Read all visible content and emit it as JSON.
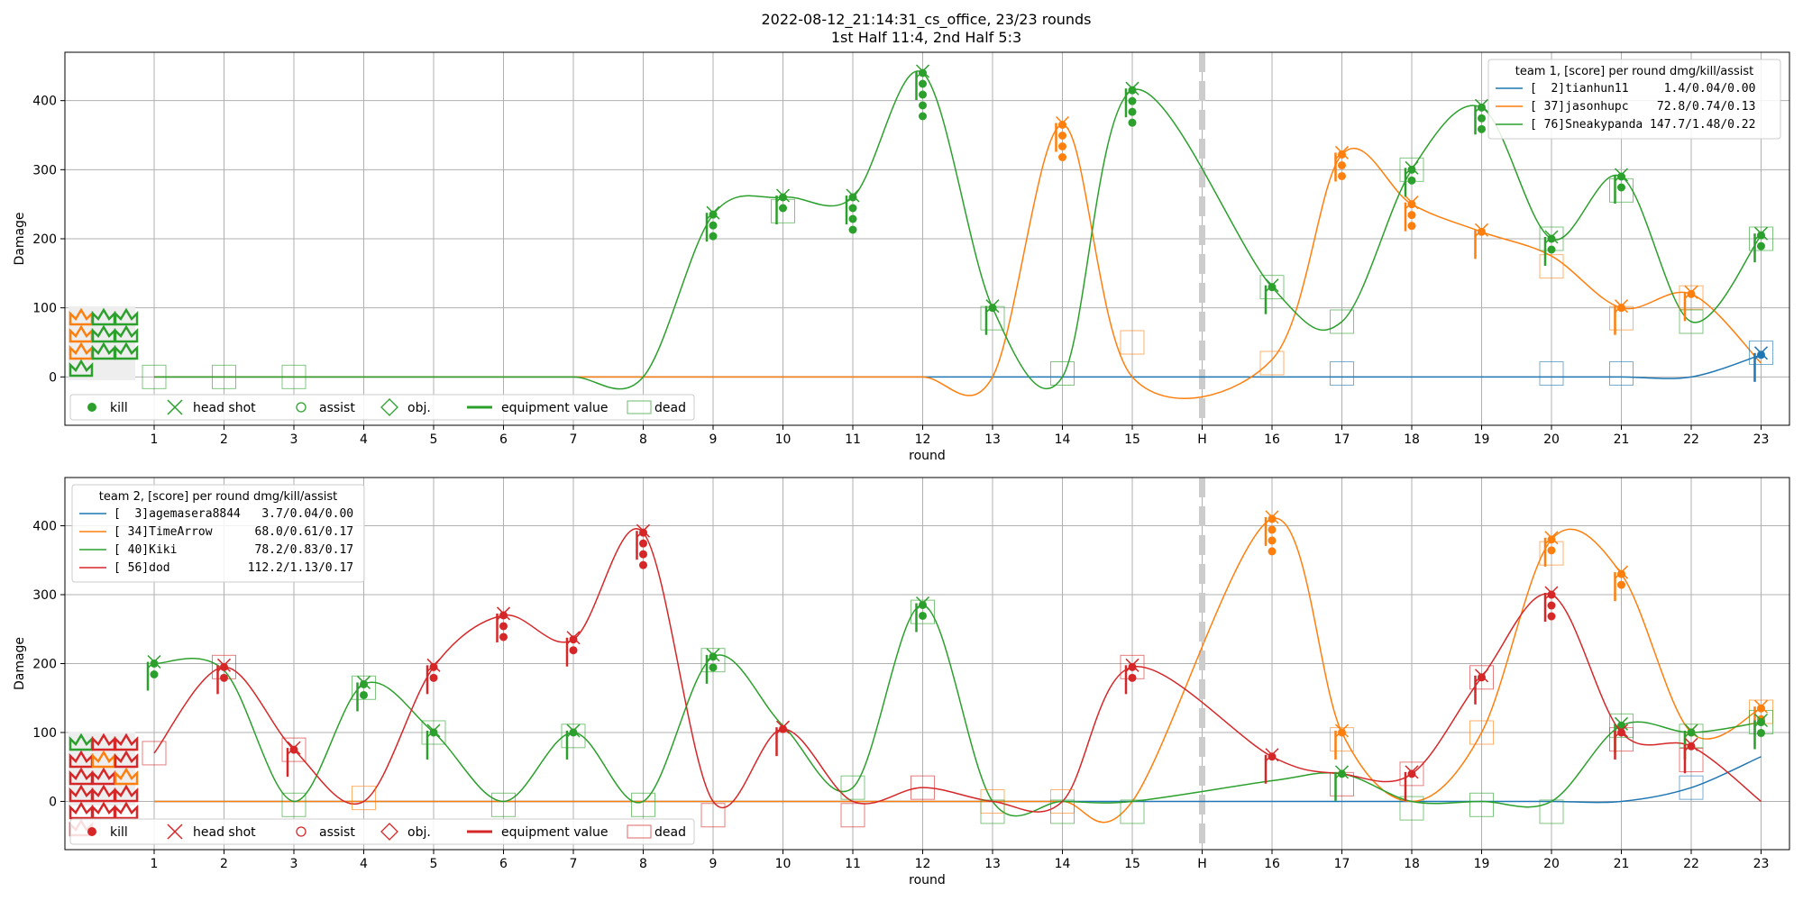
{
  "title_line1": "2022-08-12_21:14:31_cs_office, 23/23 rounds",
  "title_line2": "1st Half 11:4, 2nd Half 5:3",
  "colors": {
    "blue": "#1f77b4",
    "orange": "#ff7f0e",
    "green": "#2ca02c",
    "red": "#d62728"
  },
  "marker_legend": [
    "kill",
    "head shot",
    "assist",
    "obj.",
    "equipment value",
    "dead"
  ],
  "chart_data": [
    {
      "type": "line",
      "xlabel": "round",
      "ylabel": "Damage",
      "x_ticks": [
        "1",
        "2",
        "3",
        "4",
        "5",
        "6",
        "7",
        "8",
        "9",
        "10",
        "11",
        "12",
        "13",
        "14",
        "15",
        "H",
        "16",
        "17",
        "18",
        "19",
        "20",
        "21",
        "22",
        "23"
      ],
      "yticks": [
        0,
        100,
        200,
        300,
        400
      ],
      "ylim": [
        -70,
        470
      ],
      "grid": true,
      "halftime_after_round": 15,
      "legend_title": "team 1, [score] per round dmg/kill/assist",
      "legend_position": "top-right",
      "marker_legend_color": "green",
      "series": [
        {
          "name": "[  2]tianhun11     1.4/0.04/0.00",
          "color": "blue",
          "values": [
            0,
            0,
            0,
            0,
            0,
            0,
            0,
            0,
            0,
            0,
            0,
            0,
            0,
            0,
            0,
            0,
            0,
            0,
            0,
            0,
            0,
            0,
            32
          ]
        },
        {
          "name": "[ 37]jasonhupc    72.8/0.74/0.13",
          "color": "orange",
          "values": [
            0,
            0,
            0,
            0,
            0,
            0,
            0,
            0,
            0,
            0,
            0,
            0,
            0,
            365,
            0,
            25,
            322,
            250,
            210,
            175,
            100,
            120,
            20
          ]
        },
        {
          "name": "[ 76]Sneakypanda 147.7/1.48/0.22",
          "color": "green",
          "values": [
            0,
            0,
            0,
            0,
            0,
            0,
            0,
            0,
            235,
            260,
            260,
            440,
            100,
            0,
            415,
            130,
            80,
            300,
            390,
            200,
            290,
            80,
            205
          ]
        }
      ],
      "kills": [
        {
          "round": 9,
          "team_color": "green",
          "count": 3
        },
        {
          "round": 10,
          "team_color": "green",
          "count": 2
        },
        {
          "round": 11,
          "team_color": "green",
          "count": 4
        },
        {
          "round": 12,
          "team_color": "green",
          "count": 5
        },
        {
          "round": 13,
          "team_color": "green",
          "count": 1
        },
        {
          "round": 14,
          "team_color": "orange",
          "count": 4
        },
        {
          "round": 15,
          "team_color": "green",
          "count": 4
        },
        {
          "round": 16,
          "team_color": "green",
          "count": 1
        },
        {
          "round": 17,
          "team_color": "orange",
          "count": 3
        },
        {
          "round": 18,
          "team_color": "orange",
          "count": 3
        },
        {
          "round": 18,
          "team_color": "green",
          "count": 2
        },
        {
          "round": 19,
          "team_color": "green",
          "count": 3
        },
        {
          "round": 19,
          "team_color": "orange",
          "count": 1
        },
        {
          "round": 20,
          "team_color": "green",
          "count": 2
        },
        {
          "round": 21,
          "team_color": "green",
          "count": 2
        },
        {
          "round": 21,
          "team_color": "orange",
          "count": 1
        },
        {
          "round": 22,
          "team_color": "orange",
          "count": 1
        },
        {
          "round": 23,
          "team_color": "green",
          "count": 2
        },
        {
          "round": 23,
          "team_color": "blue",
          "count": 1
        }
      ],
      "deaths": [
        {
          "round": 1,
          "color": "green",
          "y": 0
        },
        {
          "round": 2,
          "color": "green",
          "y": 0
        },
        {
          "round": 3,
          "color": "green",
          "y": 0
        },
        {
          "round": 10,
          "color": "green",
          "y": 240
        },
        {
          "round": 13,
          "color": "green",
          "y": 85
        },
        {
          "round": 14,
          "color": "green",
          "y": 5
        },
        {
          "round": 15,
          "color": "orange",
          "y": 50
        },
        {
          "round": 16,
          "color": "orange",
          "y": 20
        },
        {
          "round": 16,
          "color": "green",
          "y": 130
        },
        {
          "round": 17,
          "color": "blue",
          "y": 5
        },
        {
          "round": 17,
          "color": "green",
          "y": 80
        },
        {
          "round": 18,
          "color": "green",
          "y": 300
        },
        {
          "round": 20,
          "color": "blue",
          "y": 5
        },
        {
          "round": 20,
          "color": "orange",
          "y": 160
        },
        {
          "round": 20,
          "color": "green",
          "y": 200
        },
        {
          "round": 21,
          "color": "blue",
          "y": 5
        },
        {
          "round": 21,
          "color": "orange",
          "y": 85
        },
        {
          "round": 21,
          "color": "green",
          "y": 270
        },
        {
          "round": 22,
          "color": "orange",
          "y": 115
        },
        {
          "round": 22,
          "color": "green",
          "y": 80
        },
        {
          "round": 23,
          "color": "blue",
          "y": 35
        },
        {
          "round": 23,
          "color": "green",
          "y": 200
        }
      ],
      "crowns": [
        {
          "color": "orange",
          "count": 1
        },
        {
          "color": "green",
          "count": 2
        },
        {
          "color": "orange",
          "count": 1
        },
        {
          "color": "green",
          "count": 2
        },
        {
          "color": "orange",
          "count": 1
        },
        {
          "color": "green",
          "count": 1
        },
        {
          "color": "green",
          "count": 2
        }
      ]
    },
    {
      "type": "line",
      "xlabel": "round",
      "ylabel": "Damage",
      "x_ticks": [
        "1",
        "2",
        "3",
        "4",
        "5",
        "6",
        "7",
        "8",
        "9",
        "10",
        "11",
        "12",
        "13",
        "14",
        "15",
        "H",
        "16",
        "17",
        "18",
        "19",
        "20",
        "21",
        "22",
        "23"
      ],
      "yticks": [
        0,
        100,
        200,
        300,
        400
      ],
      "ylim": [
        -70,
        470
      ],
      "grid": true,
      "halftime_after_round": 15,
      "legend_title": "team 2, [score] per round dmg/kill/assist",
      "legend_position": "top-left",
      "marker_legend_color": "red",
      "series": [
        {
          "name": "[  3]agemasera8844   3.7/0.04/0.00",
          "color": "blue",
          "values": [
            0,
            0,
            0,
            0,
            0,
            0,
            0,
            0,
            0,
            0,
            0,
            0,
            0,
            0,
            0,
            0,
            0,
            0,
            0,
            0,
            0,
            20,
            65
          ]
        },
        {
          "name": "[ 34]TimeArrow      68.0/0.61/0.17",
          "color": "orange",
          "values": [
            0,
            0,
            0,
            0,
            0,
            0,
            0,
            0,
            0,
            0,
            0,
            0,
            0,
            0,
            0,
            410,
            100,
            0,
            100,
            380,
            330,
            100,
            135
          ]
        },
        {
          "name": "[ 40]Kiki           78.2/0.83/0.17",
          "color": "green",
          "values": [
            200,
            190,
            0,
            170,
            100,
            0,
            100,
            0,
            210,
            110,
            20,
            285,
            0,
            0,
            0,
            30,
            40,
            0,
            0,
            0,
            110,
            100,
            115
          ]
        },
        {
          "name": "[ 56]dod           112.2/1.13/0.17",
          "color": "red",
          "values": [
            70,
            195,
            75,
            0,
            195,
            270,
            235,
            390,
            0,
            105,
            0,
            20,
            0,
            0,
            195,
            65,
            40,
            40,
            180,
            300,
            100,
            80,
            0
          ]
        }
      ],
      "kills": [
        {
          "round": 1,
          "team_color": "green",
          "count": 2
        },
        {
          "round": 2,
          "team_color": "red",
          "count": 2
        },
        {
          "round": 3,
          "team_color": "red",
          "count": 1
        },
        {
          "round": 4,
          "team_color": "green",
          "count": 2
        },
        {
          "round": 5,
          "team_color": "red",
          "count": 2
        },
        {
          "round": 5,
          "team_color": "green",
          "count": 1
        },
        {
          "round": 6,
          "team_color": "red",
          "count": 3
        },
        {
          "round": 7,
          "team_color": "red",
          "count": 2
        },
        {
          "round": 7,
          "team_color": "green",
          "count": 1
        },
        {
          "round": 8,
          "team_color": "red",
          "count": 4
        },
        {
          "round": 9,
          "team_color": "green",
          "count": 2
        },
        {
          "round": 10,
          "team_color": "red",
          "count": 1
        },
        {
          "round": 12,
          "team_color": "green",
          "count": 2
        },
        {
          "round": 15,
          "team_color": "red",
          "count": 2
        },
        {
          "round": 16,
          "team_color": "orange",
          "count": 4
        },
        {
          "round": 16,
          "team_color": "red",
          "count": 1
        },
        {
          "round": 17,
          "team_color": "orange",
          "count": 1
        },
        {
          "round": 17,
          "team_color": "green",
          "count": 1
        },
        {
          "round": 18,
          "team_color": "red",
          "count": 1
        },
        {
          "round": 19,
          "team_color": "red",
          "count": 1
        },
        {
          "round": 20,
          "team_color": "orange",
          "count": 2
        },
        {
          "round": 20,
          "team_color": "red",
          "count": 3
        },
        {
          "round": 21,
          "team_color": "orange",
          "count": 2
        },
        {
          "round": 21,
          "team_color": "green",
          "count": 1
        },
        {
          "round": 21,
          "team_color": "red",
          "count": 1
        },
        {
          "round": 22,
          "team_color": "orange",
          "count": 1
        },
        {
          "round": 22,
          "team_color": "green",
          "count": 1
        },
        {
          "round": 22,
          "team_color": "red",
          "count": 1
        },
        {
          "round": 23,
          "team_color": "orange",
          "count": 2
        },
        {
          "round": 23,
          "team_color": "green",
          "count": 2
        }
      ],
      "deaths": [
        {
          "round": 1,
          "color": "red",
          "y": 70
        },
        {
          "round": 2,
          "color": "red",
          "y": 195
        },
        {
          "round": 3,
          "color": "red",
          "y": 75
        },
        {
          "round": 3,
          "color": "green",
          "y": -5
        },
        {
          "round": 4,
          "color": "orange",
          "y": 5
        },
        {
          "round": 4,
          "color": "green",
          "y": 165
        },
        {
          "round": 5,
          "color": "green",
          "y": 100
        },
        {
          "round": 6,
          "color": "green",
          "y": -5
        },
        {
          "round": 7,
          "color": "green",
          "y": 95
        },
        {
          "round": 8,
          "color": "green",
          "y": -5
        },
        {
          "round": 9,
          "color": "red",
          "y": -20
        },
        {
          "round": 9,
          "color": "green",
          "y": 205
        },
        {
          "round": 11,
          "color": "red",
          "y": -20
        },
        {
          "round": 11,
          "color": "green",
          "y": 20
        },
        {
          "round": 12,
          "color": "red",
          "y": 20
        },
        {
          "round": 12,
          "color": "green",
          "y": 275
        },
        {
          "round": 13,
          "color": "orange",
          "y": 0
        },
        {
          "round": 13,
          "color": "green",
          "y": -15
        },
        {
          "round": 14,
          "color": "orange",
          "y": 0
        },
        {
          "round": 14,
          "color": "green",
          "y": -15
        },
        {
          "round": 15,
          "color": "green",
          "y": -15
        },
        {
          "round": 15,
          "color": "red",
          "y": 195
        },
        {
          "round": 17,
          "color": "orange",
          "y": 90
        },
        {
          "round": 17,
          "color": "red",
          "y": 25
        },
        {
          "round": 18,
          "color": "green",
          "y": -10
        },
        {
          "round": 18,
          "color": "red",
          "y": 40
        },
        {
          "round": 19,
          "color": "orange",
          "y": 100
        },
        {
          "round": 19,
          "color": "green",
          "y": -5
        },
        {
          "round": 19,
          "color": "red",
          "y": 180
        },
        {
          "round": 20,
          "color": "orange",
          "y": 360
        },
        {
          "round": 20,
          "color": "green",
          "y": -15
        },
        {
          "round": 21,
          "color": "red",
          "y": 90
        },
        {
          "round": 21,
          "color": "green",
          "y": 110
        },
        {
          "round": 22,
          "color": "blue",
          "y": 20
        },
        {
          "round": 22,
          "color": "green",
          "y": 95
        },
        {
          "round": 22,
          "color": "red",
          "y": 60
        },
        {
          "round": 23,
          "color": "orange",
          "y": 130
        },
        {
          "round": 23,
          "color": "green",
          "y": 115
        }
      ],
      "crowns": [
        {
          "color": "green",
          "count": 1
        },
        {
          "color": "red",
          "count": 3
        },
        {
          "color": "orange",
          "count": 1
        },
        {
          "color": "red",
          "count": 3
        },
        {
          "color": "orange",
          "count": 1
        },
        {
          "color": "red",
          "count": 3
        },
        {
          "color": "red",
          "count": 4
        }
      ]
    }
  ]
}
